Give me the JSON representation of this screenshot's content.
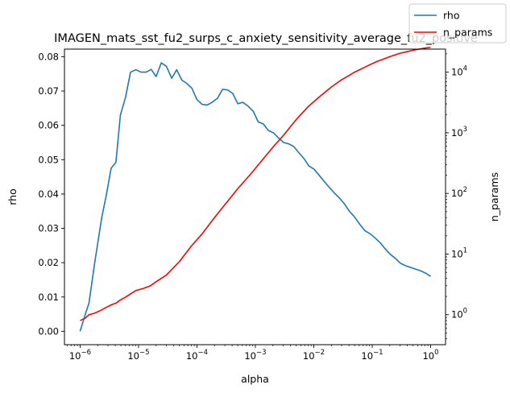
{
  "chart_data": {
    "type": "line",
    "title": "IMAGEN_mats_sst_fu2_surps_c_anxiety_sensitivity_average_fu2_positive",
    "xlabel": "alpha",
    "ylabel": "rho",
    "y2label": "n_params",
    "xscale": "log",
    "y2scale": "log",
    "xlim": [
      5.4e-07,
      1.8
    ],
    "ylim": [
      -0.0039,
      0.0822
    ],
    "y2lim": [
      0.32,
      24000
    ],
    "xticks": [
      1e-06,
      1e-05,
      0.0001,
      0.001,
      0.01,
      0.1,
      1
    ],
    "xtick_labels": [
      {
        "base": "10",
        "exp": "−6"
      },
      {
        "base": "10",
        "exp": "−5"
      },
      {
        "base": "10",
        "exp": "−4"
      },
      {
        "base": "10",
        "exp": "−3"
      },
      {
        "base": "10",
        "exp": "−2"
      },
      {
        "base": "10",
        "exp": "−1"
      },
      {
        "base": "10",
        "exp": "0"
      }
    ],
    "yticks": [
      0.0,
      0.01,
      0.02,
      0.03,
      0.04,
      0.05,
      0.06,
      0.07,
      0.08
    ],
    "ytick_labels": [
      "0.00",
      "0.01",
      "0.02",
      "0.03",
      "0.04",
      "0.05",
      "0.06",
      "0.07",
      "0.08"
    ],
    "y2ticks": [
      1,
      10,
      100,
      1000,
      10000
    ],
    "y2tick_labels": [
      {
        "base": "10",
        "exp": "0"
      },
      {
        "base": "10",
        "exp": "1"
      },
      {
        "base": "10",
        "exp": "2"
      },
      {
        "base": "10",
        "exp": "3"
      },
      {
        "base": "10",
        "exp": "4"
      }
    ],
    "grid": false,
    "legend_position": "top-right",
    "series": [
      {
        "name": "rho",
        "axis": "left",
        "color": "#1f77b4",
        "x": [
          1e-06,
          1.23e-06,
          1.42e-06,
          1.78e-06,
          2.34e-06,
          2.8e-06,
          3.4e-06,
          4.1e-06,
          4.9e-06,
          6e-06,
          7.3e-06,
          9e-06,
          1.1e-05,
          1.35e-05,
          1.65e-05,
          2e-05,
          2.45e-05,
          3e-05,
          3.7e-05,
          4.5e-05,
          5.5e-05,
          6.7e-05,
          8.2e-05,
          0.0001,
          0.000123,
          0.00015,
          0.000185,
          0.000225,
          0.000275,
          0.000335,
          0.00041,
          0.0005,
          0.00061,
          0.00075,
          0.00092,
          0.00112,
          0.00137,
          0.00167,
          0.00205,
          0.0025,
          0.00305,
          0.00373,
          0.00455,
          0.00556,
          0.0068,
          0.0083,
          0.01,
          0.0123,
          0.015,
          0.0185,
          0.0225,
          0.0275,
          0.0335,
          0.041,
          0.05,
          0.061,
          0.075,
          0.092,
          0.112,
          0.137,
          0.167,
          0.205,
          0.25,
          0.305,
          0.373,
          0.455,
          0.556,
          0.68,
          0.83,
          1.0
        ],
        "y": [
          0.0,
          0.005,
          0.0082,
          0.02,
          0.033,
          0.0395,
          0.0475,
          0.0492,
          0.063,
          0.0682,
          0.0755,
          0.0762,
          0.0755,
          0.0755,
          0.0763,
          0.0742,
          0.0782,
          0.0772,
          0.0737,
          0.0762,
          0.0732,
          0.0722,
          0.0708,
          0.0675,
          0.0661,
          0.0659,
          0.0668,
          0.0679,
          0.0705,
          0.0703,
          0.0693,
          0.0663,
          0.0667,
          0.0656,
          0.0641,
          0.061,
          0.0604,
          0.0585,
          0.0578,
          0.0563,
          0.055,
          0.0546,
          0.0538,
          0.052,
          0.0503,
          0.0481,
          0.0473,
          0.0455,
          0.0437,
          0.0419,
          0.0403,
          0.0388,
          0.0371,
          0.0349,
          0.0333,
          0.0312,
          0.0293,
          0.0284,
          0.0272,
          0.0258,
          0.024,
          0.0224,
          0.0212,
          0.0198,
          0.0191,
          0.0186,
          0.0181,
          0.0176,
          0.0169,
          0.016
        ]
      },
      {
        "name": "n_params",
        "axis": "right",
        "color": "#ff0000",
        "x": [
          1e-06,
          1.23e-06,
          1.42e-06,
          1.78e-06,
          2.34e-06,
          2.8e-06,
          3.4e-06,
          4.1e-06,
          4.9e-06,
          6e-06,
          7.3e-06,
          9e-06,
          1.2e-05,
          1.6e-05,
          2e-05,
          3e-05,
          5e-05,
          8e-05,
          0.00012,
          0.0002,
          0.0003,
          0.0005,
          0.0008,
          0.0012,
          0.002,
          0.003,
          0.005,
          0.008,
          0.012,
          0.02,
          0.03,
          0.05,
          0.08,
          0.12,
          0.2,
          0.3,
          0.5,
          0.8,
          1.0
        ],
        "y": [
          0.8,
          0.88,
          1.0,
          1.06,
          1.2,
          1.32,
          1.45,
          1.55,
          1.75,
          1.95,
          2.2,
          2.5,
          2.7,
          3.0,
          3.5,
          4.5,
          7.5,
          13.5,
          21,
          40,
          65,
          120,
          200,
          320,
          580,
          900,
          1650,
          2700,
          3800,
          5700,
          7500,
          10000,
          12500,
          15000,
          18000,
          20500,
          23000,
          25000,
          25700
        ]
      }
    ]
  }
}
